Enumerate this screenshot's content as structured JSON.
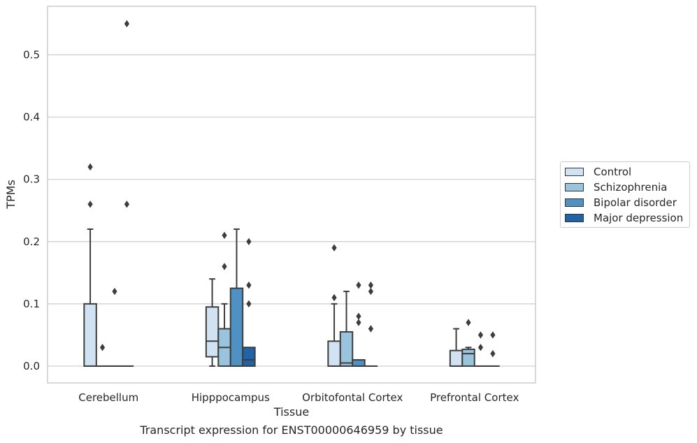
{
  "caption": "Transcript expression for ENST00000646959 by tissue",
  "chart_data": {
    "type": "box",
    "title": "",
    "xlabel": "Tissue",
    "ylabel": "TPMs",
    "ylim": [
      -0.027,
      0.578
    ],
    "yticks": [
      "0.0",
      "0.1",
      "0.2",
      "0.3",
      "0.4",
      "0.5"
    ],
    "categories": [
      "Cerebellum",
      "Hipppocampus",
      "Orbitofontal Cortex",
      "Prefrontal Cortex"
    ],
    "grid": "horizontal",
    "legend_position": "right",
    "series": [
      {
        "name": "Control",
        "color": "#d1e2f2",
        "boxes": [
          {
            "q1": 0.0,
            "median": 0.0,
            "q3": 0.1,
            "whisker_low": 0.0,
            "whisker_high": 0.22,
            "outliers": [
              0.32,
              0.26
            ]
          },
          {
            "q1": 0.015,
            "median": 0.04,
            "q3": 0.095,
            "whisker_low": 0.0,
            "whisker_high": 0.14,
            "outliers": []
          },
          {
            "q1": 0.0,
            "median": 0.0,
            "q3": 0.04,
            "whisker_low": 0.0,
            "whisker_high": 0.1,
            "outliers": [
              0.19,
              0.11
            ]
          },
          {
            "q1": 0.0,
            "median": 0.0,
            "q3": 0.025,
            "whisker_low": 0.0,
            "whisker_high": 0.06,
            "outliers": []
          }
        ]
      },
      {
        "name": "Schizophrenia",
        "color": "#9ac4de",
        "boxes": [
          {
            "q1": 0.0,
            "median": 0.0,
            "q3": 0.0,
            "whisker_low": 0.0,
            "whisker_high": 0.0,
            "outliers": [
              0.03
            ]
          },
          {
            "q1": 0.0,
            "median": 0.03,
            "q3": 0.06,
            "whisker_low": 0.0,
            "whisker_high": 0.1,
            "outliers": [
              0.21,
              0.16
            ]
          },
          {
            "q1": 0.0,
            "median": 0.005,
            "q3": 0.055,
            "whisker_low": 0.0,
            "whisker_high": 0.12,
            "outliers": []
          },
          {
            "q1": 0.0,
            "median": 0.02,
            "q3": 0.027,
            "whisker_low": 0.0,
            "whisker_high": 0.03,
            "outliers": [
              0.07
            ]
          }
        ]
      },
      {
        "name": "Bipolar disorder",
        "color": "#4f91c3",
        "boxes": [
          {
            "q1": 0.0,
            "median": 0.0,
            "q3": 0.0,
            "whisker_low": 0.0,
            "whisker_high": 0.0,
            "outliers": [
              0.12
            ]
          },
          {
            "q1": 0.0,
            "median": 0.0,
            "q3": 0.125,
            "whisker_low": 0.0,
            "whisker_high": 0.22,
            "outliers": []
          },
          {
            "q1": 0.0,
            "median": 0.0,
            "q3": 0.01,
            "whisker_low": 0.0,
            "whisker_high": 0.01,
            "outliers": [
              0.13,
              0.08,
              0.07
            ]
          },
          {
            "q1": 0.0,
            "median": 0.0,
            "q3": 0.0,
            "whisker_low": 0.0,
            "whisker_high": 0.0,
            "outliers": [
              0.05,
              0.03
            ]
          }
        ]
      },
      {
        "name": "Major depression",
        "color": "#2163a7",
        "boxes": [
          {
            "q1": 0.0,
            "median": 0.0,
            "q3": 0.0,
            "whisker_low": 0.0,
            "whisker_high": 0.0,
            "outliers": [
              0.55,
              0.26
            ]
          },
          {
            "q1": 0.0,
            "median": 0.01,
            "q3": 0.03,
            "whisker_low": 0.0,
            "whisker_high": 0.03,
            "outliers": [
              0.2,
              0.13,
              0.1
            ]
          },
          {
            "q1": 0.0,
            "median": 0.0,
            "q3": 0.0,
            "whisker_low": 0.0,
            "whisker_high": 0.0,
            "outliers": [
              0.13,
              0.12,
              0.06
            ]
          },
          {
            "q1": 0.0,
            "median": 0.0,
            "q3": 0.0,
            "whisker_low": 0.0,
            "whisker_high": 0.0,
            "outliers": [
              0.05,
              0.02
            ]
          }
        ]
      }
    ]
  }
}
